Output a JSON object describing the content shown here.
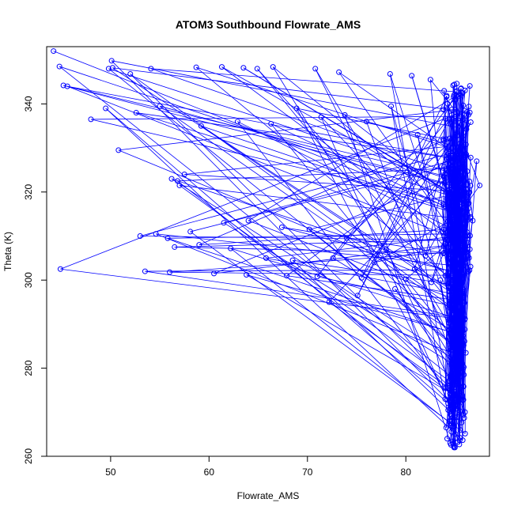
{
  "chart_data": {
    "type": "scatter",
    "title": "ATOM3 Southbound Flowrate_AMS",
    "xlabel": "Flowrate_AMS",
    "ylabel": "Theta (K)",
    "xlim": [
      43.5,
      88.5
    ],
    "ylim": [
      260,
      353
    ],
    "xticks": [
      50,
      60,
      70,
      80
    ],
    "yticks": [
      260,
      280,
      300,
      320,
      340
    ],
    "series_color": "#0000ff",
    "series": [
      {
        "name": "Southbound",
        "style": "points-and-lines",
        "x": [
          44.2,
          44.8,
          45.2,
          45.6,
          50.1,
          49.8,
          50.2,
          52.0,
          54.1,
          58.7,
          61.3,
          63.5,
          64.9,
          66.5,
          70.8,
          73.2,
          78.4,
          80.6,
          82.5,
          84.8,
          85.2,
          84.9,
          85.1,
          84.7,
          85.0,
          85.3,
          84.9,
          85.2,
          85.6,
          86.0,
          85.4,
          85.8,
          86.2,
          86.5,
          85.1,
          84.6,
          85.0,
          85.4,
          84.8,
          85.2,
          85.7,
          86.1,
          85.5,
          85.9,
          84.4,
          84.0,
          84.3,
          84.7,
          84.1,
          84.5,
          84.9,
          84.2,
          84.6,
          84.3,
          84.0,
          57.5,
          56.8,
          56.2,
          57.0,
          54.6,
          53.0,
          55.8,
          58.1,
          61.5,
          64.0,
          67.4,
          70.2,
          74.0,
          78.0,
          82.0,
          84.5,
          48.0,
          49.5,
          50.8,
          52.6,
          55.0,
          59.2,
          62.9,
          66.3,
          68.9,
          71.4,
          73.8,
          76.0,
          78.5,
          81.2,
          83.8,
          85.5,
          44.9,
          53.5,
          56.0,
          60.5,
          63.8,
          67.9,
          71.0,
          75.5,
          80.0,
          83.5,
          72.2,
          75.1,
          78.9,
          82.6,
          84.3,
          85.6,
          86.8,
          87.5,
          87.2,
          56.5,
          59.0,
          62.2,
          65.8,
          68.5,
          72.6,
          76.8,
          80.9,
          84.0,
          85.8
        ],
        "y": [
          352.0,
          348.5,
          344.2,
          344.0,
          349.8,
          348.0,
          348.2,
          346.8,
          348.0,
          348.3,
          348.4,
          348.2,
          348.0,
          348.4,
          348.0,
          347.2,
          346.8,
          346.4,
          345.5,
          344.2,
          343.0,
          342.0,
          341.0,
          336.0,
          333.0,
          330.0,
          327.5,
          325.0,
          322.0,
          319.0,
          316.0,
          313.0,
          310.0,
          307.0,
          304.0,
          301.0,
          298.0,
          295.0,
          292.0,
          289.0,
          286.0,
          283.5,
          281.0,
          278.5,
          276.0,
          273.0,
          270.5,
          268.0,
          266.5,
          263.0,
          262.0,
          264.0,
          267.0,
          272.0,
          275.5,
          324.0,
          322.5,
          323.0,
          321.5,
          310.5,
          310.0,
          309.5,
          311.0,
          313.0,
          313.5,
          312.0,
          311.5,
          309.5,
          307.0,
          305.5,
          304.0,
          336.5,
          339.0,
          329.5,
          338.0,
          339.5,
          335.0,
          336.0,
          335.5,
          339.0,
          337.0,
          337.5,
          336.0,
          339.5,
          333.0,
          332.0,
          331.0,
          302.5,
          302.0,
          301.8,
          301.5,
          301.2,
          301.0,
          300.8,
          300.5,
          300.2,
          300.0,
          295.0,
          296.5,
          298.0,
          299.5,
          301.0,
          306.0,
          313.5,
          321.5,
          327.0,
          307.5,
          308.0,
          307.2,
          305.0,
          304.5,
          305.0,
          304.0,
          302.5,
          301.0,
          300.0
        ]
      }
    ],
    "cluster": {
      "x_center": 85.2,
      "x_spread": 1.4,
      "y_min": 261.5,
      "y_max": 345.0,
      "count": 320
    }
  }
}
